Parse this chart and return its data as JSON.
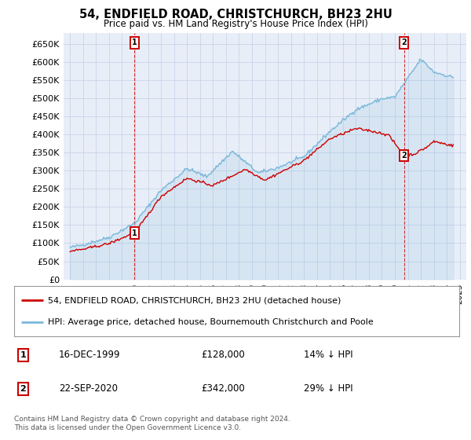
{
  "title": "54, ENDFIELD ROAD, CHRISTCHURCH, BH23 2HU",
  "subtitle": "Price paid vs. HM Land Registry's House Price Index (HPI)",
  "ylabel_ticks": [
    "£0",
    "£50K",
    "£100K",
    "£150K",
    "£200K",
    "£250K",
    "£300K",
    "£350K",
    "£400K",
    "£450K",
    "£500K",
    "£550K",
    "£600K",
    "£650K"
  ],
  "ylim": [
    0,
    680000
  ],
  "ytick_vals": [
    0,
    50000,
    100000,
    150000,
    200000,
    250000,
    300000,
    350000,
    400000,
    450000,
    500000,
    550000,
    600000,
    650000
  ],
  "hpi_color": "#7ab8d9",
  "price_color": "#cc0000",
  "bg_color": "#e8eef8",
  "grid_color": "#c8d4e8",
  "purchase1_x": 1999.96,
  "purchase1_y": 128000,
  "purchase2_x": 2020.72,
  "purchase2_y": 342000,
  "legend_line1": "54, ENDFIELD ROAD, CHRISTCHURCH, BH23 2HU (detached house)",
  "legend_line2": "HPI: Average price, detached house, Bournemouth Christchurch and Poole",
  "footnote": "Contains HM Land Registry data © Crown copyright and database right 2024.\nThis data is licensed under the Open Government Licence v3.0.",
  "xmin": 1994.5,
  "xmax": 2025.5
}
